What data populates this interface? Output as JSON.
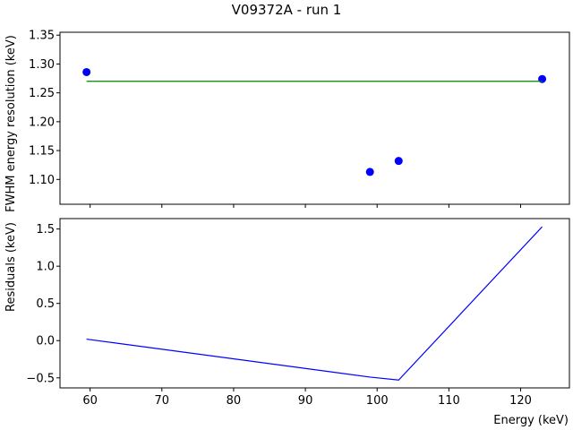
{
  "chart_data": [
    {
      "type": "scatter",
      "title": "V09372A - run 1",
      "xlabel": "",
      "ylabel": "FWHM energy resolution (keV)",
      "xlim": [
        55.8,
        126.8
      ],
      "ylim": [
        1.057,
        1.355
      ],
      "xticks": [
        60,
        70,
        80,
        90,
        100,
        110,
        120
      ],
      "xtick_labels_visible": false,
      "yticks": [
        1.1,
        1.15,
        1.2,
        1.25,
        1.3,
        1.35
      ],
      "ytick_labels": [
        "1.10",
        "1.15",
        "1.20",
        "1.25",
        "1.30",
        "1.35"
      ],
      "grid": false,
      "series": [
        {
          "kind": "scatter",
          "color": "#0000ff",
          "points": [
            {
              "x": 59.5,
              "y": 1.286
            },
            {
              "x": 99.0,
              "y": 1.113
            },
            {
              "x": 103.0,
              "y": 1.132
            },
            {
              "x": 123.0,
              "y": 1.274
            }
          ]
        },
        {
          "kind": "line",
          "color": "#008000",
          "points": [
            {
              "x": 59.5,
              "y": 1.27
            },
            {
              "x": 123.0,
              "y": 1.27
            }
          ]
        }
      ]
    },
    {
      "type": "line",
      "title": "",
      "xlabel": "Energy (keV)",
      "ylabel": "Residuals (keV)",
      "xlim": [
        55.8,
        126.8
      ],
      "ylim": [
        -0.635,
        1.64
      ],
      "xticks": [
        60,
        70,
        80,
        90,
        100,
        110,
        120
      ],
      "xtick_labels": [
        "60",
        "70",
        "80",
        "90",
        "100",
        "110",
        "120"
      ],
      "yticks": [
        -0.5,
        0.0,
        0.5,
        1.0,
        1.5
      ],
      "ytick_labels": [
        "−0.5",
        "0.0",
        "0.5",
        "1.0",
        "1.5"
      ],
      "grid": false,
      "series": [
        {
          "kind": "line",
          "color": "#0000ff",
          "points": [
            {
              "x": 59.5,
              "y": 0.02
            },
            {
              "x": 99.0,
              "y": -0.49
            },
            {
              "x": 103.0,
              "y": -0.53
            },
            {
              "x": 123.0,
              "y": 1.53
            }
          ]
        }
      ]
    }
  ]
}
